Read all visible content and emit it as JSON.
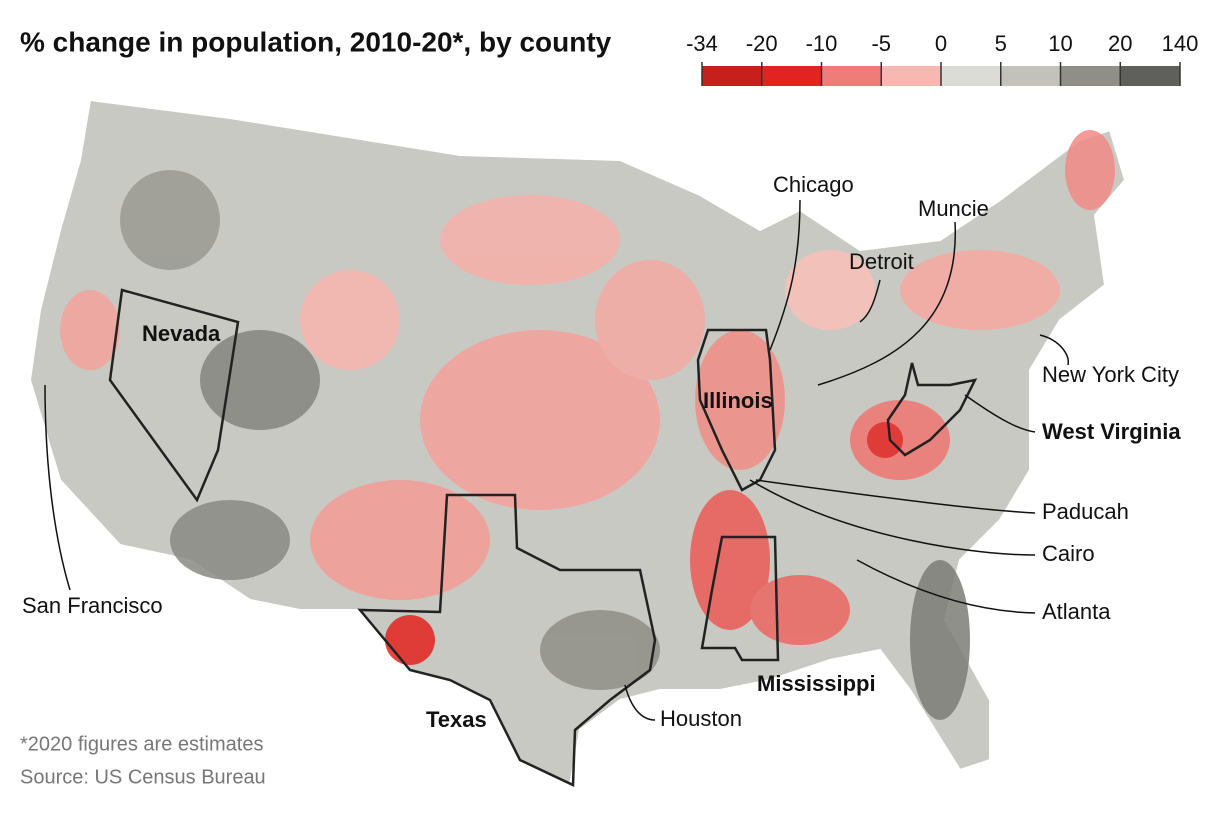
{
  "title": "% change in population, 2010-20*, by county",
  "legend": {
    "ticks": [
      -34,
      -20,
      -10,
      -5,
      0,
      5,
      10,
      20,
      140
    ],
    "colors": [
      "#c61f1c",
      "#e3231f",
      "#f07c79",
      "#f8b7b0",
      "#dcdcd6",
      "#c2c2bb",
      "#8f8f88",
      "#5f5f5b"
    ]
  },
  "labels": {
    "states": [
      "Nevada",
      "Illinois",
      "West Virginia",
      "Mississippi",
      "Texas"
    ],
    "cities": [
      "Chicago",
      "Muncie",
      "Detroit",
      "New York City",
      "Paducah",
      "Cairo",
      "Atlanta",
      "Houston",
      "San Francisco"
    ]
  },
  "footnote": "*2020 figures are estimates",
  "source": "Source: US Census Bureau"
}
